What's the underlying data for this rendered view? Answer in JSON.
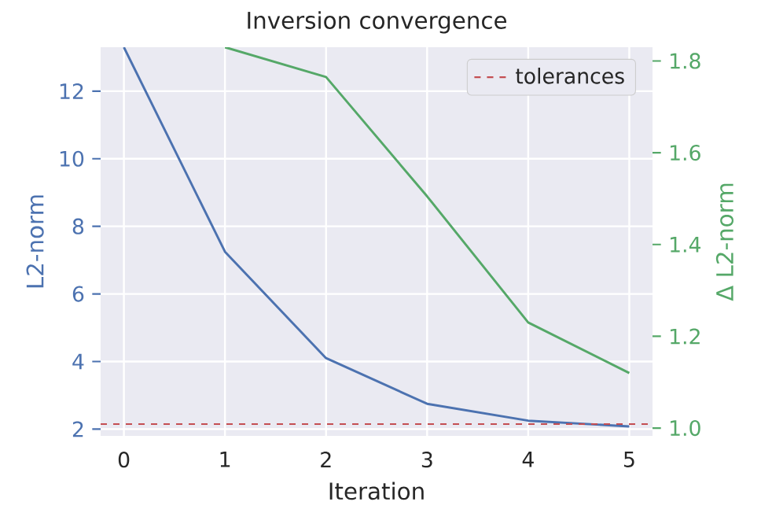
{
  "chart_data": {
    "type": "line",
    "title": "Inversion convergence",
    "xlabel": "Iteration",
    "ylabel": "L2-norm",
    "y2label": "Δ L2-norm",
    "x": [
      0,
      1,
      2,
      3,
      4,
      5
    ],
    "series": [
      {
        "color": "#4c72b0",
        "values": [
          13.3,
          7.25,
          4.1,
          2.75,
          2.25,
          2.08
        ]
      },
      {
        "color": "#55a868",
        "axis": "y2",
        "x": [
          1,
          2,
          3,
          4,
          5
        ],
        "values": [
          1.83,
          1.765,
          1.505,
          1.23,
          1.12
        ]
      }
    ],
    "xlim": [
      -0.23,
      5.23
    ],
    "xticks": [
      0,
      1,
      2,
      3,
      4,
      5
    ],
    "ylim": [
      1.8,
      13.3
    ],
    "yticks": [
      2,
      4,
      6,
      8,
      10,
      12
    ],
    "y2lim": [
      0.983,
      1.83
    ],
    "y2ticks": [
      {
        "value": 1.0,
        "label": "1.0"
      },
      {
        "value": 1.2,
        "label": "1.2"
      },
      {
        "value": 1.4,
        "label": "1.4"
      },
      {
        "value": 1.6,
        "label": "1.6"
      },
      {
        "value": 1.8,
        "label": "1.8"
      }
    ],
    "ref_lines": [
      {
        "axis": "y",
        "value": 2.15,
        "label": "tolerances",
        "color": "#c44e52",
        "line_style": "dashed"
      }
    ],
    "grid": true,
    "legend": "top right",
    "marker": "none",
    "line_style": "solid"
  }
}
